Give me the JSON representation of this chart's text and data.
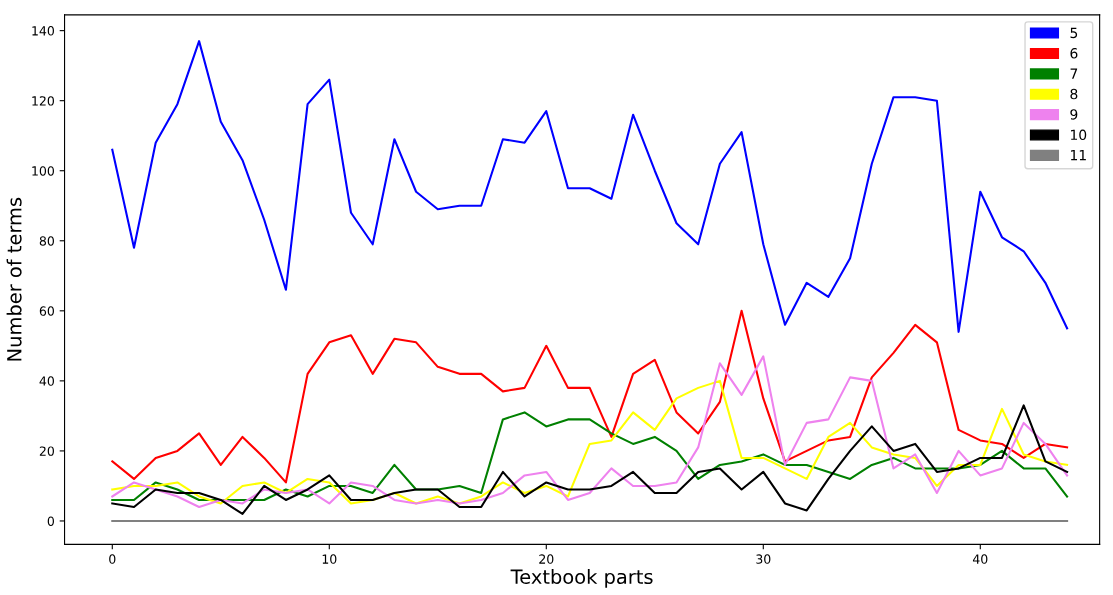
{
  "chart_data": {
    "type": "line",
    "xlabel": "Textbook parts",
    "ylabel": "Number of terms",
    "x": [
      0,
      1,
      2,
      3,
      4,
      5,
      6,
      7,
      8,
      9,
      10,
      11,
      12,
      13,
      14,
      15,
      16,
      17,
      18,
      19,
      20,
      21,
      22,
      23,
      24,
      25,
      26,
      27,
      28,
      29,
      30,
      31,
      32,
      33,
      34,
      35,
      36,
      37,
      38,
      39,
      40,
      41,
      42,
      43,
      44
    ],
    "series": [
      {
        "name": "5",
        "color": "#0000ff",
        "values": [
          106,
          78,
          108,
          119,
          137,
          114,
          103,
          86,
          66,
          119,
          126,
          88,
          79,
          109,
          94,
          89,
          90,
          90,
          109,
          108,
          117,
          95,
          95,
          92,
          116,
          100,
          85,
          79,
          102,
          111,
          79,
          56,
          68,
          64,
          75,
          102,
          121,
          121,
          120,
          54,
          94,
          81,
          77,
          68,
          55
        ]
      },
      {
        "name": "6",
        "color": "#ff0000",
        "values": [
          17,
          12,
          18,
          20,
          25,
          16,
          24,
          18,
          11,
          42,
          51,
          53,
          42,
          52,
          51,
          44,
          42,
          42,
          37,
          38,
          50,
          38,
          38,
          24,
          42,
          46,
          31,
          25,
          34,
          60,
          35,
          17,
          20,
          23,
          24,
          41,
          48,
          56,
          51,
          26,
          23,
          22,
          18,
          22,
          21
        ]
      },
      {
        "name": "7",
        "color": "#008000",
        "values": [
          6,
          6,
          11,
          9,
          6,
          6,
          6,
          6,
          9,
          7,
          10,
          10,
          8,
          16,
          9,
          9,
          10,
          8,
          29,
          31,
          27,
          29,
          29,
          25,
          22,
          24,
          20,
          12,
          16,
          17,
          19,
          16,
          16,
          14,
          12,
          16,
          18,
          15,
          15,
          15,
          16,
          20,
          15,
          15,
          7
        ]
      },
      {
        "name": "8",
        "color": "#ffff00",
        "values": [
          9,
          10,
          10,
          11,
          7,
          5,
          10,
          11,
          8,
          12,
          11,
          5,
          6,
          8,
          5,
          7,
          5,
          7,
          11,
          8,
          10,
          7,
          22,
          23,
          31,
          26,
          35,
          38,
          40,
          18,
          18,
          15,
          12,
          24,
          28,
          21,
          19,
          18,
          10,
          16,
          16,
          32,
          19,
          17,
          16
        ]
      },
      {
        "name": "9",
        "color": "#ee82ee",
        "values": [
          7,
          11,
          9,
          7,
          4,
          6,
          5,
          9,
          8,
          9,
          5,
          11,
          10,
          6,
          5,
          6,
          5,
          6,
          8,
          13,
          14,
          6,
          8,
          15,
          10,
          10,
          11,
          21,
          45,
          36,
          47,
          16,
          28,
          29,
          41,
          40,
          15,
          19,
          8,
          20,
          13,
          15,
          28,
          22,
          13
        ]
      },
      {
        "name": "10",
        "color": "#000000",
        "values": [
          5,
          4,
          9,
          8,
          8,
          6,
          2,
          10,
          6,
          9,
          13,
          6,
          6,
          8,
          9,
          9,
          4,
          4,
          14,
          7,
          11,
          9,
          9,
          10,
          14,
          8,
          8,
          14,
          15,
          9,
          14,
          5,
          3,
          12,
          20,
          27,
          20,
          22,
          14,
          15,
          18,
          18,
          33,
          17,
          14
        ]
      },
      {
        "name": "11",
        "color": "#808080",
        "values": [
          0,
          0,
          0,
          0,
          0,
          0,
          0,
          0,
          0,
          0,
          0,
          0,
          0,
          0,
          0,
          0,
          0,
          0,
          0,
          0,
          0,
          0,
          0,
          0,
          0,
          0,
          0,
          0,
          0,
          0,
          0,
          0,
          0,
          0,
          0,
          0,
          0,
          0,
          0,
          0,
          0,
          0,
          0,
          0,
          0
        ]
      }
    ],
    "xlim": [
      -2.2,
      45.5
    ],
    "xticks": [
      0,
      10,
      20,
      30,
      40
    ],
    "ylim": [
      -6.7,
      144.5
    ],
    "yticks": [
      0,
      20,
      40,
      60,
      80,
      100,
      120,
      140
    ],
    "legend": "top right",
    "grid": false
  }
}
